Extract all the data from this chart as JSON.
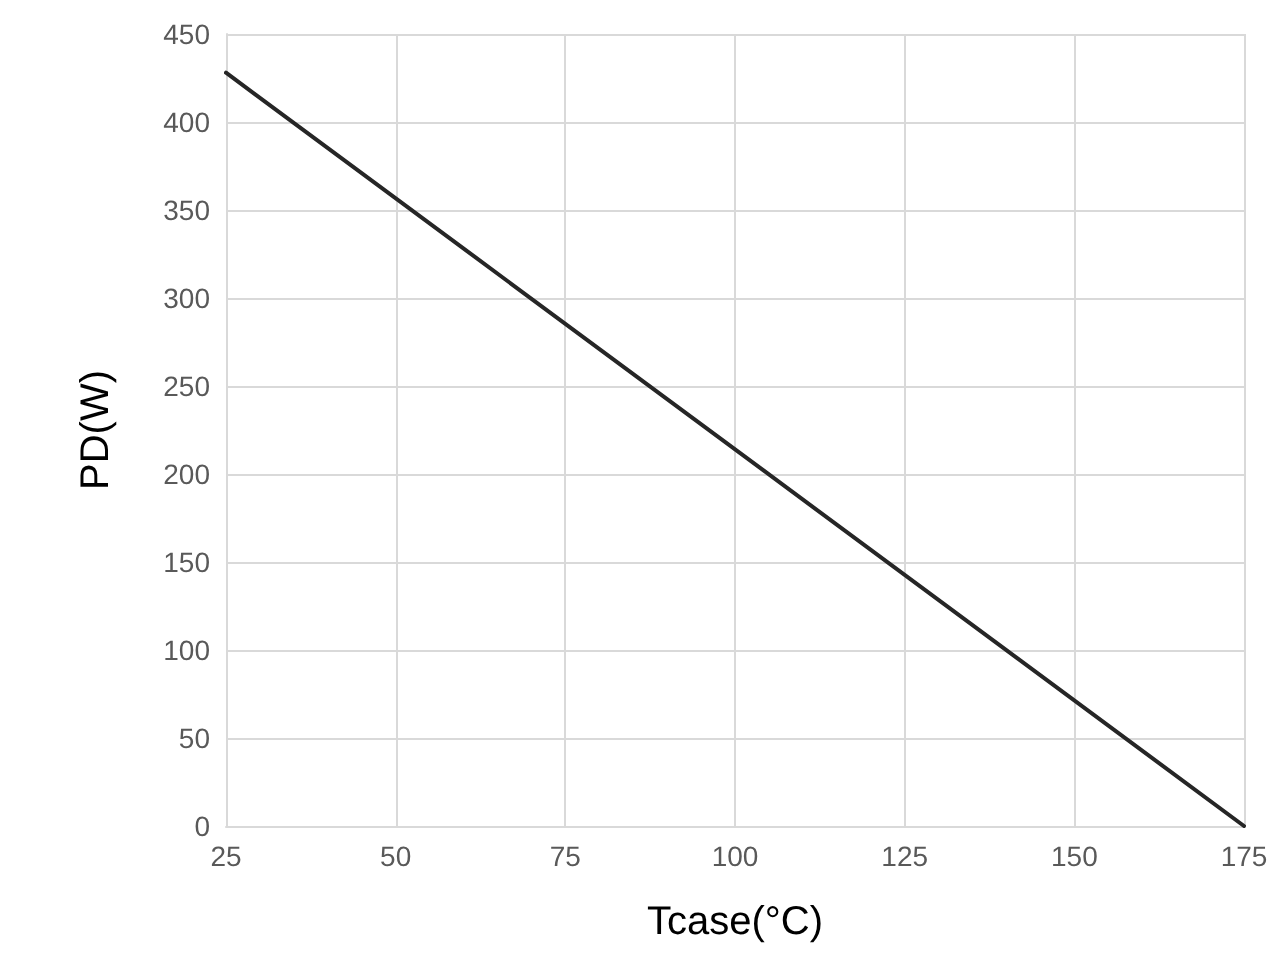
{
  "chart_data": {
    "type": "line",
    "xlabel": "Tcase(°C)",
    "ylabel": "PD(W)",
    "x": [
      25,
      175
    ],
    "series": [
      {
        "color": "#262626",
        "values": [
          428,
          0
        ]
      }
    ],
    "xlim": [
      25,
      175
    ],
    "xticks": [
      25,
      50,
      75,
      100,
      125,
      150,
      175
    ],
    "ylim": [
      0,
      450
    ],
    "yticks": [
      0,
      50,
      100,
      150,
      200,
      250,
      300,
      350,
      400,
      450
    ],
    "grid": true,
    "marker": "none",
    "line_style": "solid"
  }
}
